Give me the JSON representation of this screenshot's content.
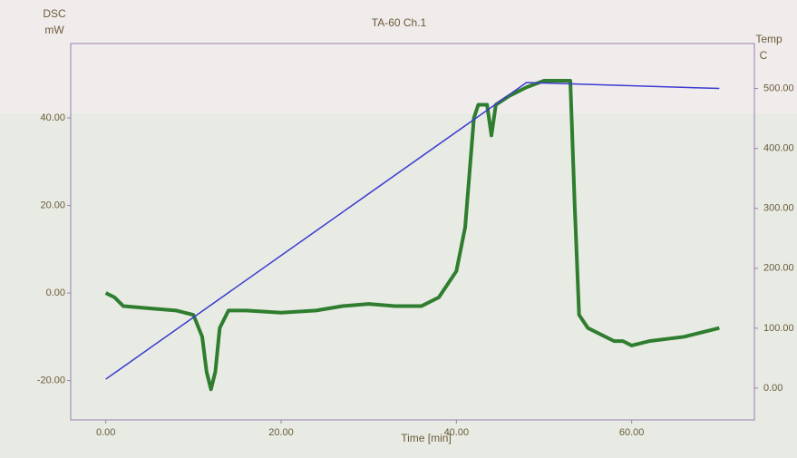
{
  "chart_data": {
    "type": "line",
    "title": "TA-60 Ch.1",
    "y_label": [
      "DSC",
      "mW"
    ],
    "y2_label": [
      "Temp",
      "C"
    ],
    "x_label": "Time [min]",
    "xlim": [
      -4,
      74
    ],
    "ylim": [
      -29,
      57
    ],
    "y2lim": [
      -53,
      575
    ],
    "xticks": [
      {
        "value": 0,
        "label": "0.00"
      },
      {
        "value": 20,
        "label": "20.00"
      },
      {
        "value": 40,
        "label": "40.00"
      },
      {
        "value": 60,
        "label": "60.00"
      }
    ],
    "yticks": [
      {
        "value": -20,
        "label": "-20.00"
      },
      {
        "value": 0,
        "label": "0.00"
      },
      {
        "value": 20,
        "label": "20.00"
      },
      {
        "value": 40,
        "label": "40.00"
      }
    ],
    "y2ticks": [
      {
        "value": 0,
        "label": "0.00"
      },
      {
        "value": 100,
        "label": "100.00"
      },
      {
        "value": 200,
        "label": "200.00"
      },
      {
        "value": 300,
        "label": "300.00"
      },
      {
        "value": 400,
        "label": "400.00"
      },
      {
        "value": 500,
        "label": "500.00"
      }
    ],
    "series": [
      {
        "color": "#2f7d2f",
        "axis": "y",
        "x": [
          0,
          1,
          2,
          5,
          8,
          10,
          11,
          11.5,
          12,
          12.5,
          13,
          14,
          16,
          20,
          24,
          27,
          30,
          33,
          36,
          38,
          40,
          41,
          42,
          42.5,
          43.5,
          44,
          44.5,
          46,
          48,
          50,
          53,
          53.5,
          54,
          55,
          58,
          59,
          60,
          62,
          66,
          70
        ],
        "values": [
          0,
          -1,
          -3,
          -3.5,
          -4,
          -5,
          -10,
          -18,
          -22,
          -18,
          -8,
          -4,
          -4,
          -4.5,
          -4,
          -3,
          -2.5,
          -3,
          -3,
          -1,
          5,
          15,
          40,
          43,
          43,
          36,
          43,
          45,
          47,
          48.5,
          48.5,
          20,
          -5,
          -8,
          -11,
          -11,
          -12,
          -11,
          -10,
          -8
        ]
      },
      {
        "color": "#3a3ad0",
        "axis": "y2",
        "x": [
          0,
          48,
          70
        ],
        "values": [
          15,
          510,
          500
        ]
      }
    ]
  }
}
